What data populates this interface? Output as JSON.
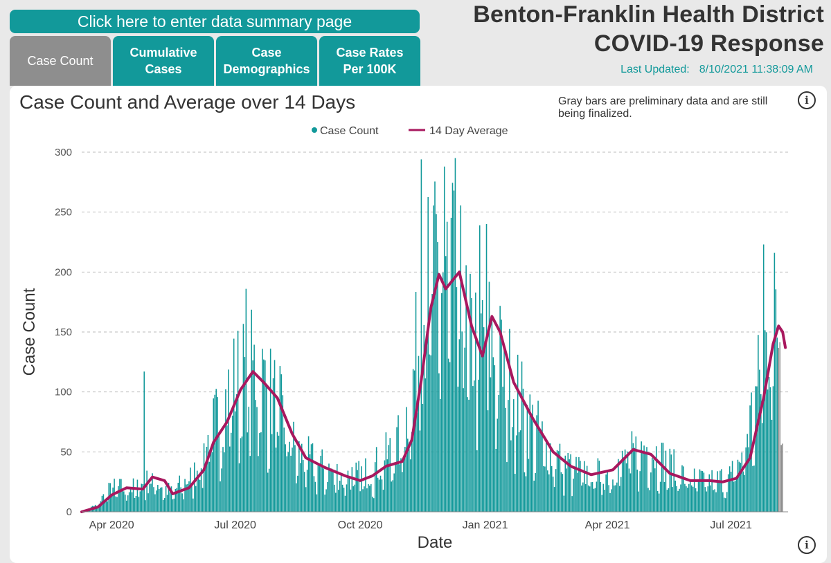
{
  "header": {
    "summary_button": "Click here to enter data summary page",
    "title_line1": "Benton-Franklin Health District",
    "title_line2": "COVID-19 Response",
    "last_updated_label": "Last Updated:",
    "last_updated_value": "8/10/2021 11:38:09 AM"
  },
  "tabs": [
    {
      "label": "Case Count",
      "active": true
    },
    {
      "label": "Cumulative\nCases",
      "active": false
    },
    {
      "label": "Case\nDemographics",
      "active": false
    },
    {
      "label": "Case Rates\nPer 100K",
      "active": false
    }
  ],
  "card": {
    "note": "Gray bars are preliminary data and are still being finalized.",
    "info_icon": "info-icon"
  },
  "colors": {
    "bar": "#12999a",
    "bar_preliminary": "#8e8e8e",
    "average_line": "#a8185e",
    "grid": "#bbbbbb"
  },
  "chart_data": {
    "type": "bar",
    "title": "Case Count and Average over 14 Days",
    "xlabel": "Date",
    "ylabel": "Case Count",
    "ylim": [
      0,
      300
    ],
    "yticks": [
      0,
      50,
      100,
      150,
      200,
      250,
      300
    ],
    "x_range": [
      "2020-03-10",
      "2021-08-12"
    ],
    "x_ticks": [
      {
        "date": "2020-04-01",
        "label": "Apr 2020"
      },
      {
        "date": "2020-07-01",
        "label": "Jul 2020"
      },
      {
        "date": "2020-10-01",
        "label": "Oct 2020"
      },
      {
        "date": "2021-01-01",
        "label": "Jan 2021"
      },
      {
        "date": "2021-04-01",
        "label": "Apr 2021"
      },
      {
        "date": "2021-07-01",
        "label": "Jul 2021"
      }
    ],
    "grid": "horizontal dashed",
    "legend_placement": "top-center",
    "series": [
      {
        "name": "Case Count",
        "kind": "bar",
        "daily_trend": [
          {
            "date": "2020-03-10",
            "value": 0
          },
          {
            "date": "2020-03-20",
            "value": 5
          },
          {
            "date": "2020-04-01",
            "value": 20
          },
          {
            "date": "2020-04-20",
            "value": 20
          },
          {
            "date": "2020-05-01",
            "value": 28
          },
          {
            "date": "2020-05-15",
            "value": 16
          },
          {
            "date": "2020-06-01",
            "value": 32
          },
          {
            "date": "2020-06-15",
            "value": 70
          },
          {
            "date": "2020-07-01",
            "value": 110
          },
          {
            "date": "2020-07-15",
            "value": 120
          },
          {
            "date": "2020-08-01",
            "value": 90
          },
          {
            "date": "2020-08-15",
            "value": 50
          },
          {
            "date": "2020-09-01",
            "value": 38
          },
          {
            "date": "2020-09-20",
            "value": 30
          },
          {
            "date": "2020-10-01",
            "value": 30
          },
          {
            "date": "2020-10-15",
            "value": 40
          },
          {
            "date": "2020-11-01",
            "value": 60
          },
          {
            "date": "2020-11-10",
            "value": 120
          },
          {
            "date": "2020-11-20",
            "value": 190
          },
          {
            "date": "2020-12-01",
            "value": 200
          },
          {
            "date": "2020-12-10",
            "value": 205
          },
          {
            "date": "2020-12-20",
            "value": 140
          },
          {
            "date": "2021-01-01",
            "value": 150
          },
          {
            "date": "2021-01-15",
            "value": 120
          },
          {
            "date": "2021-02-01",
            "value": 80
          },
          {
            "date": "2021-02-15",
            "value": 55
          },
          {
            "date": "2021-03-01",
            "value": 40
          },
          {
            "date": "2021-03-15",
            "value": 32
          },
          {
            "date": "2021-04-01",
            "value": 32
          },
          {
            "date": "2021-04-15",
            "value": 45
          },
          {
            "date": "2021-05-01",
            "value": 55
          },
          {
            "date": "2021-05-15",
            "value": 40
          },
          {
            "date": "2021-06-01",
            "value": 27
          },
          {
            "date": "2021-06-20",
            "value": 26
          },
          {
            "date": "2021-07-01",
            "value": 30
          },
          {
            "date": "2021-07-10",
            "value": 50
          },
          {
            "date": "2021-07-20",
            "value": 100
          },
          {
            "date": "2021-08-01",
            "value": 170
          },
          {
            "date": "2021-08-08",
            "value": 150
          }
        ],
        "labeled_peaks": [
          {
            "date": "2020-04-25",
            "value": 117
          },
          {
            "date": "2020-07-09",
            "value": 186
          },
          {
            "date": "2020-11-15",
            "value": 294
          },
          {
            "date": "2020-12-02",
            "value": 288
          },
          {
            "date": "2020-12-28",
            "value": 239
          },
          {
            "date": "2021-01-02",
            "value": 240
          },
          {
            "date": "2021-07-25",
            "value": 223
          },
          {
            "date": "2021-08-02",
            "value": 216
          }
        ]
      },
      {
        "name": "14 Day Average",
        "kind": "line",
        "points": [
          {
            "date": "2020-03-10",
            "value": 0
          },
          {
            "date": "2020-03-22",
            "value": 4
          },
          {
            "date": "2020-04-01",
            "value": 14
          },
          {
            "date": "2020-04-12",
            "value": 20
          },
          {
            "date": "2020-04-24",
            "value": 19
          },
          {
            "date": "2020-05-01",
            "value": 29
          },
          {
            "date": "2020-05-10",
            "value": 26
          },
          {
            "date": "2020-05-16",
            "value": 15
          },
          {
            "date": "2020-05-28",
            "value": 20
          },
          {
            "date": "2020-06-08",
            "value": 35
          },
          {
            "date": "2020-06-15",
            "value": 58
          },
          {
            "date": "2020-06-25",
            "value": 75
          },
          {
            "date": "2020-07-05",
            "value": 102
          },
          {
            "date": "2020-07-14",
            "value": 117
          },
          {
            "date": "2020-07-22",
            "value": 108
          },
          {
            "date": "2020-08-01",
            "value": 95
          },
          {
            "date": "2020-08-12",
            "value": 65
          },
          {
            "date": "2020-08-22",
            "value": 45
          },
          {
            "date": "2020-09-05",
            "value": 37
          },
          {
            "date": "2020-09-20",
            "value": 30
          },
          {
            "date": "2020-10-01",
            "value": 26
          },
          {
            "date": "2020-10-10",
            "value": 30
          },
          {
            "date": "2020-10-20",
            "value": 38
          },
          {
            "date": "2020-11-01",
            "value": 42
          },
          {
            "date": "2020-11-08",
            "value": 60
          },
          {
            "date": "2020-11-15",
            "value": 110
          },
          {
            "date": "2020-11-22",
            "value": 170
          },
          {
            "date": "2020-11-28",
            "value": 198
          },
          {
            "date": "2020-12-03",
            "value": 186
          },
          {
            "date": "2020-12-13",
            "value": 200
          },
          {
            "date": "2020-12-22",
            "value": 155
          },
          {
            "date": "2020-12-30",
            "value": 130
          },
          {
            "date": "2021-01-06",
            "value": 163
          },
          {
            "date": "2021-01-12",
            "value": 150
          },
          {
            "date": "2021-01-22",
            "value": 108
          },
          {
            "date": "2021-02-05",
            "value": 78
          },
          {
            "date": "2021-02-20",
            "value": 50
          },
          {
            "date": "2021-03-05",
            "value": 38
          },
          {
            "date": "2021-03-20",
            "value": 31
          },
          {
            "date": "2021-04-05",
            "value": 35
          },
          {
            "date": "2021-04-20",
            "value": 52
          },
          {
            "date": "2021-05-03",
            "value": 48
          },
          {
            "date": "2021-05-17",
            "value": 32
          },
          {
            "date": "2021-06-01",
            "value": 26
          },
          {
            "date": "2021-06-15",
            "value": 26
          },
          {
            "date": "2021-06-25",
            "value": 25
          },
          {
            "date": "2021-07-05",
            "value": 28
          },
          {
            "date": "2021-07-15",
            "value": 45
          },
          {
            "date": "2021-07-25",
            "value": 95
          },
          {
            "date": "2021-08-01",
            "value": 140
          },
          {
            "date": "2021-08-05",
            "value": 155
          },
          {
            "date": "2021-08-08",
            "value": 150
          },
          {
            "date": "2021-08-10",
            "value": 137
          }
        ]
      }
    ],
    "preliminary_from": "2021-08-05"
  }
}
